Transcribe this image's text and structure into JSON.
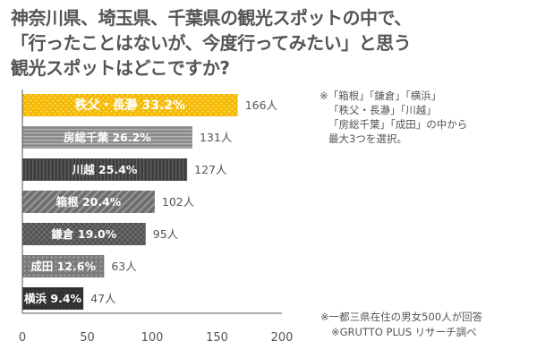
{
  "title_lines": [
    "神奈川県、埼玉県、千葉県の観光スポットの中で、",
    "「行ったことはないが、今度行ってみたい」と思う",
    "観光スポットはどこですか?"
  ],
  "note_lines": [
    "※「箱根」「鎌倉」「横浜」",
    "「秩父・長瀞」「川越」",
    "「房総千葉」「成田」の中から",
    "最大3つを選択。"
  ],
  "source_lines": [
    "※一都三県在住の男女500人が回答",
    "※GRUTTO PLUS リサーチ調べ"
  ],
  "chart_data": {
    "type": "bar",
    "orientation": "horizontal",
    "categories": [
      "秩父・長瀞",
      "房総千葉",
      "川越",
      "箱根",
      "鎌倉",
      "成田",
      "横浜"
    ],
    "values": [
      166,
      131,
      127,
      102,
      95,
      63,
      47
    ],
    "percents": [
      "33.2%",
      "26.2%",
      "25.4%",
      "20.4%",
      "19.0%",
      "12.6%",
      "9.4%"
    ],
    "value_labels": [
      "166人",
      "131人",
      "127人",
      "102人",
      "95人",
      "63人",
      "47人"
    ],
    "xlim": [
      0,
      200
    ],
    "xticks": [
      0,
      50,
      100,
      150,
      200
    ],
    "grid": false,
    "highlight_color": "#f5b800",
    "bar_colors": [
      "#f5b800",
      "#8a8a8a",
      "#3e3e3e",
      "#6e6e6e",
      "#525252",
      "#7a7a7a",
      "#303030"
    ]
  }
}
